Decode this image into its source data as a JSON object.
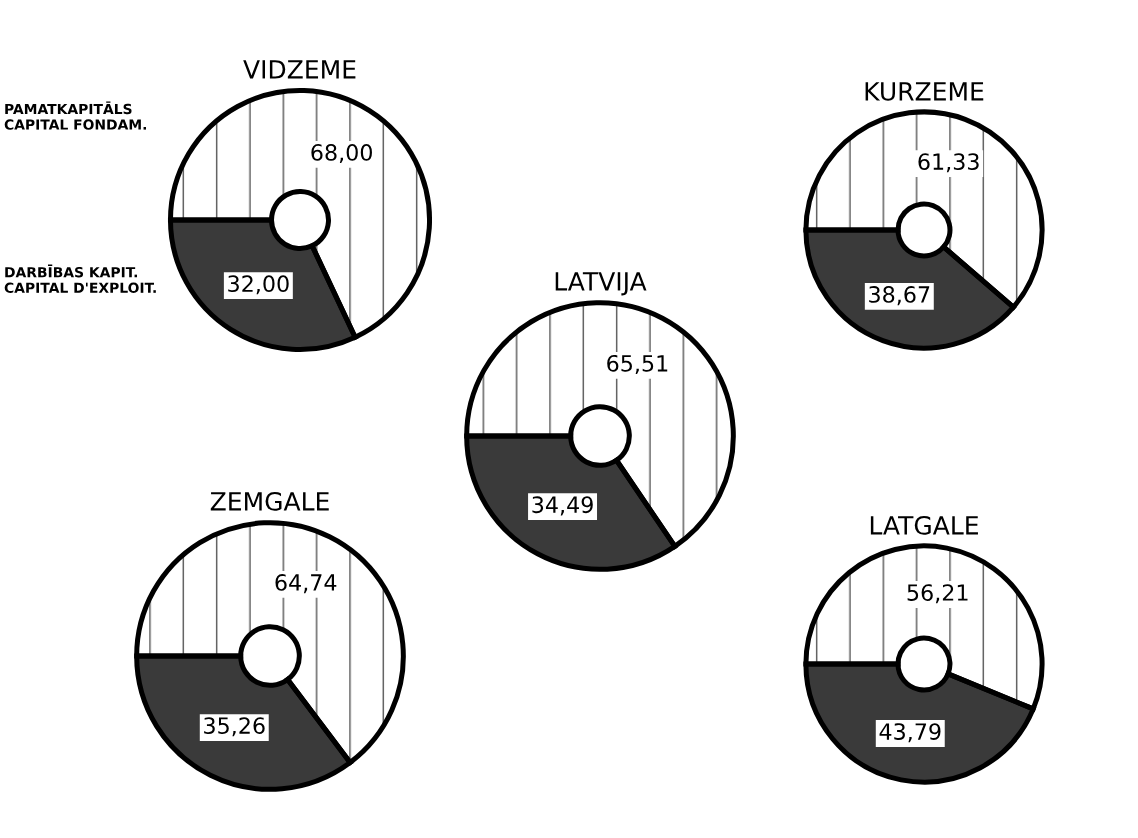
{
  "chart_data": [
    {
      "type": "donut",
      "title": "VIDZEME",
      "categories": [
        "PAMATKAPITĀLS\nCAPITAL FONDAM.",
        "DARBĪBAS KAPIT.\nCAPITAL D'EXPLOIT."
      ],
      "values": [
        68.0,
        32.0
      ],
      "value_labels": [
        "68,00",
        "32,00"
      ],
      "colors": [
        "#ffffff",
        "#3a3a3a"
      ]
    },
    {
      "type": "donut",
      "title": "KURZEME",
      "categories": [
        null,
        null
      ],
      "values": [
        61.33,
        38.67
      ],
      "value_labels": [
        "61,33",
        "38,67"
      ],
      "colors": [
        "#ffffff",
        "#3a3a3a"
      ]
    },
    {
      "type": "donut",
      "title": "LATVIJA",
      "categories": [
        null,
        null
      ],
      "values": [
        65.51,
        34.49
      ],
      "value_labels": [
        "65,51",
        "34,49"
      ],
      "colors": [
        "#ffffff",
        "#3a3a3a"
      ]
    },
    {
      "type": "donut",
      "title": "ZEMGALE",
      "categories": [
        null,
        null
      ],
      "values": [
        64.74,
        35.26
      ],
      "value_labels": [
        "64,74",
        "35,26"
      ],
      "colors": [
        "#ffffff",
        "#3a3a3a"
      ]
    },
    {
      "type": "donut",
      "title": "LATGALE",
      "categories": [
        null,
        null
      ],
      "values": [
        56.21,
        43.79
      ],
      "value_labels": [
        "56,21",
        "43,79"
      ],
      "colors": [
        "#ffffff",
        "#3a3a3a"
      ]
    }
  ]
}
